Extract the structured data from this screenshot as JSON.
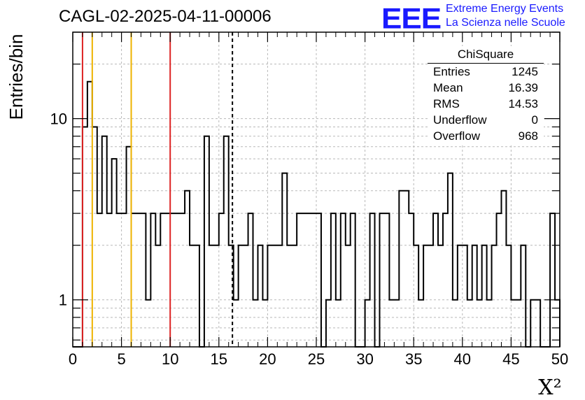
{
  "header": {
    "title": "CAGL-02-2025-04-11-00006",
    "logo": "EEE",
    "logo_line1": "Extreme Energy Events",
    "logo_line2": "La Scienza nelle Scuole"
  },
  "stats": {
    "title": "ChiSquare",
    "rows": [
      {
        "label": "Entries",
        "value": "1245"
      },
      {
        "label": "Mean",
        "value": "16.39"
      },
      {
        "label": "RMS",
        "value": "14.53"
      },
      {
        "label": "Underflow",
        "value": "0"
      },
      {
        "label": "Overflow",
        "value": "968"
      }
    ]
  },
  "chart_data": {
    "type": "histogram",
    "title": "CAGL-02-2025-04-11-00006",
    "xlabel": "X²",
    "ylabel": "Entries/bin",
    "xlim": [
      0,
      50
    ],
    "ylim": [
      0.55,
      30
    ],
    "yscale": "log",
    "grid": true,
    "bin_width": 0.5,
    "x_ticks": [
      "0",
      "5",
      "10",
      "15",
      "20",
      "25",
      "30",
      "35",
      "40",
      "45",
      "50"
    ],
    "y_ticks": [
      "1",
      "10"
    ],
    "values": [
      0,
      0,
      9,
      16,
      9,
      3,
      8,
      3,
      6,
      3,
      3,
      7,
      3,
      3,
      3,
      1,
      3,
      2,
      3,
      3,
      3,
      3,
      3,
      4,
      2,
      2,
      0,
      8,
      2,
      2,
      3,
      8,
      2,
      1,
      2,
      2,
      3,
      1,
      2,
      1,
      2,
      2,
      2,
      5,
      2,
      2,
      3,
      3,
      3,
      3,
      3,
      0,
      1,
      3,
      1,
      3,
      2,
      3,
      0,
      0,
      1,
      3,
      0,
      3,
      3,
      1,
      1,
      4,
      4,
      3,
      2,
      1,
      2,
      2,
      3,
      2,
      3,
      5,
      1,
      2,
      2,
      1,
      2,
      1,
      2,
      1,
      2,
      3,
      4,
      2,
      1,
      1,
      2,
      0,
      1,
      1,
      0,
      0,
      3,
      1
    ],
    "reference_lines": [
      {
        "x": 1,
        "color": "#dd2222"
      },
      {
        "x": 2,
        "color": "#eeb300"
      },
      {
        "x": 6,
        "color": "#eeb300"
      },
      {
        "x": 10,
        "color": "#dd2222"
      },
      {
        "x": 16.39,
        "color": "#000000",
        "dashed": true
      }
    ]
  }
}
